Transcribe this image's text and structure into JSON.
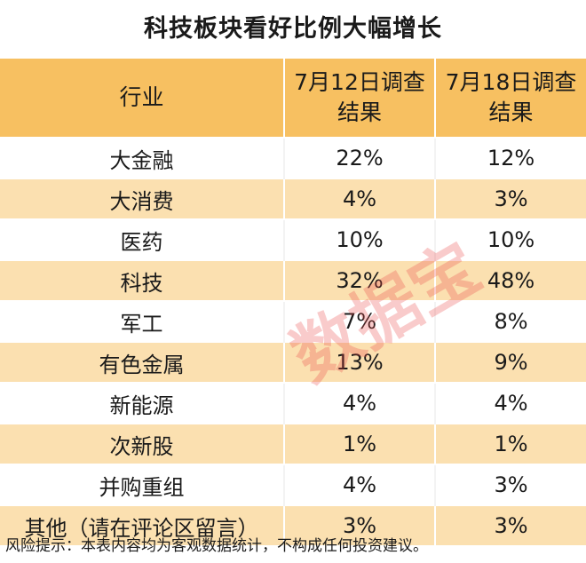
{
  "title": "科技板块看好比例大幅增长",
  "table": {
    "headers": [
      "行业",
      "7月12日调查结果",
      "7月18日调查结果"
    ],
    "rows": [
      [
        "大金融",
        "22%",
        "12%"
      ],
      [
        "大消费",
        "4%",
        "3%"
      ],
      [
        "医药",
        "10%",
        "10%"
      ],
      [
        "科技",
        "32%",
        "48%"
      ],
      [
        "军工",
        "7%",
        "8%"
      ],
      [
        "有色金属",
        "13%",
        "9%"
      ],
      [
        "新能源",
        "4%",
        "4%"
      ],
      [
        "次新股",
        "1%",
        "1%"
      ],
      [
        "并购重组",
        "4%",
        "3%"
      ],
      [
        "其他（请在评论区留言）",
        "3%",
        "3%"
      ]
    ]
  },
  "footer": "风险提示：本表内容均为客观数据统计，不构成任何投资建议。",
  "watermark": "数据宝",
  "colors": {
    "header_bg": "#f7c061",
    "stripe_bg": "#fbe0b0",
    "watermark": "#e84646"
  }
}
